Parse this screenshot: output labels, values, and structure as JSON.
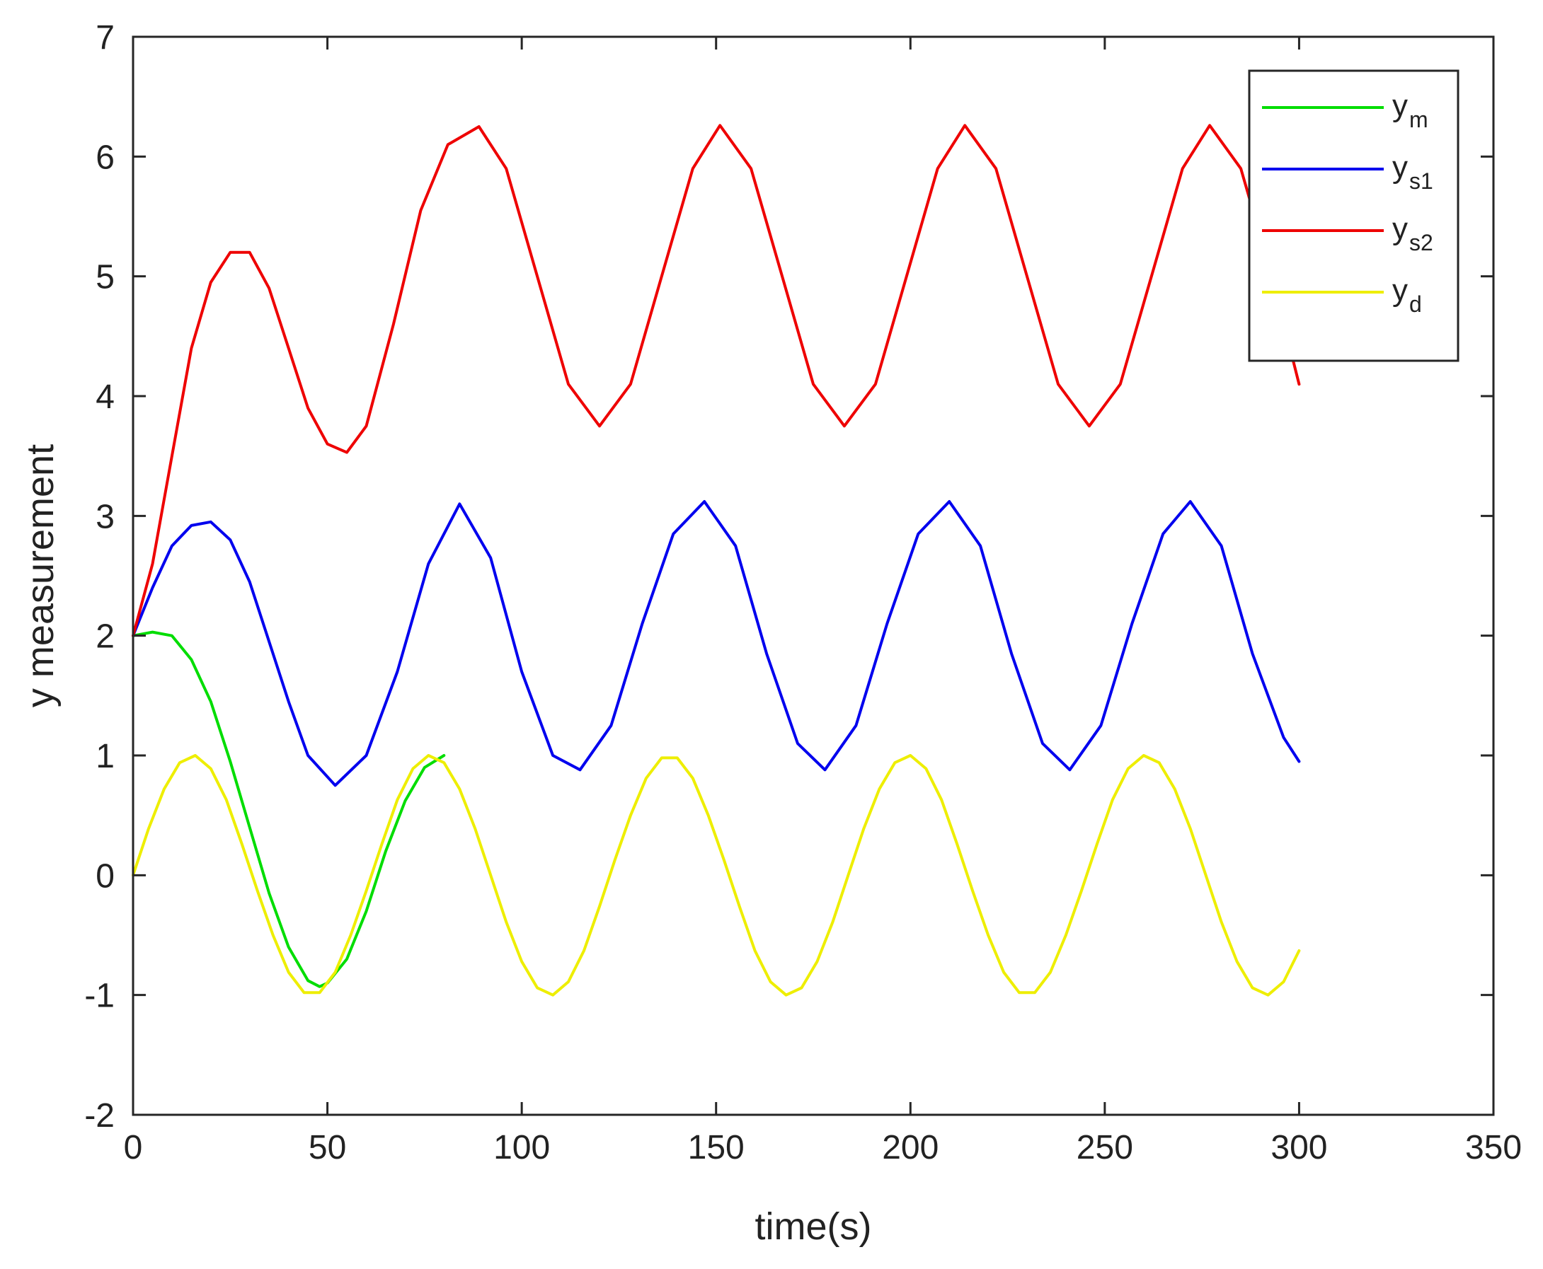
{
  "chart_data": {
    "type": "line",
    "xlabel": "time(s)",
    "ylabel": "y measurement",
    "xlim": [
      0,
      350
    ],
    "ylim": [
      -2,
      7
    ],
    "xticks": [
      0,
      50,
      100,
      150,
      200,
      250,
      300,
      350
    ],
    "yticks": [
      -2,
      -1,
      0,
      1,
      2,
      3,
      4,
      5,
      6,
      7
    ],
    "grid": false,
    "legend_position": "top-right",
    "series": [
      {
        "name": "y",
        "subscript": "m",
        "color": "#00dd00",
        "x": [
          0,
          5,
          10,
          15,
          20,
          25,
          30,
          35,
          40,
          45,
          48,
          50,
          55,
          60,
          65,
          70,
          75,
          80
        ],
        "y": [
          2.0,
          2.03,
          2.0,
          1.8,
          1.45,
          0.95,
          0.4,
          -0.15,
          -0.6,
          -0.88,
          -0.93,
          -0.9,
          -0.7,
          -0.3,
          0.2,
          0.62,
          0.9,
          1.0
        ]
      },
      {
        "name": "y",
        "subscript": "s1",
        "color": "#0000ee",
        "x": [
          0,
          5,
          10,
          15,
          20,
          25,
          30,
          35,
          40,
          45,
          52,
          60,
          68,
          76,
          84,
          92,
          100,
          108,
          115,
          123,
          131,
          139,
          147,
          155,
          163,
          171,
          178,
          186,
          194,
          202,
          210,
          218,
          226,
          234,
          241,
          249,
          257,
          265,
          272,
          280,
          288,
          296,
          300
        ],
        "y": [
          2.0,
          2.4,
          2.75,
          2.92,
          2.95,
          2.8,
          2.45,
          1.95,
          1.45,
          1.0,
          0.75,
          1.0,
          1.7,
          2.6,
          3.1,
          2.65,
          1.7,
          1.0,
          0.88,
          1.25,
          2.1,
          2.85,
          3.12,
          2.75,
          1.85,
          1.1,
          0.88,
          1.25,
          2.1,
          2.85,
          3.12,
          2.75,
          1.85,
          1.1,
          0.88,
          1.25,
          2.1,
          2.85,
          3.12,
          2.75,
          1.85,
          1.15,
          0.95
        ]
      },
      {
        "name": "y",
        "subscript": "s2",
        "color": "#ee0000",
        "x": [
          0,
          5,
          10,
          15,
          20,
          25,
          30,
          35,
          40,
          45,
          50,
          55,
          60,
          67,
          74,
          81,
          89,
          96,
          104,
          112,
          120,
          128,
          136,
          144,
          151,
          159,
          167,
          175,
          183,
          191,
          199,
          207,
          214,
          222,
          230,
          238,
          246,
          254,
          262,
          270,
          277,
          285,
          293,
          300
        ],
        "y": [
          2.0,
          2.6,
          3.5,
          4.4,
          4.95,
          5.2,
          5.2,
          4.9,
          4.4,
          3.9,
          3.6,
          3.53,
          3.75,
          4.6,
          5.55,
          6.1,
          6.25,
          5.9,
          5.0,
          4.1,
          3.75,
          4.1,
          5.0,
          5.9,
          6.26,
          5.9,
          5.0,
          4.1,
          3.75,
          4.1,
          5.0,
          5.9,
          6.26,
          5.9,
          5.0,
          4.1,
          3.75,
          4.1,
          5.0,
          5.9,
          6.26,
          5.9,
          5.0,
          4.1
        ]
      },
      {
        "name": "y",
        "subscript": "d",
        "color": "#eeee00",
        "x": [
          0,
          4,
          8,
          12,
          16,
          20,
          24,
          28,
          32,
          36,
          40,
          44,
          48,
          52,
          56,
          60,
          64,
          68,
          72,
          76,
          80,
          84,
          88,
          92,
          96,
          100,
          104,
          108,
          112,
          116,
          120,
          124,
          128,
          132,
          136,
          140,
          144,
          148,
          152,
          156,
          160,
          164,
          168,
          172,
          176,
          180,
          184,
          188,
          192,
          196,
          200,
          204,
          208,
          212,
          216,
          220,
          224,
          228,
          232,
          236,
          240,
          244,
          248,
          252,
          256,
          260,
          264,
          268,
          272,
          276,
          280,
          284,
          288,
          292,
          296,
          300
        ],
        "y": [
          0,
          0.39,
          0.72,
          0.94,
          1.0,
          0.89,
          0.63,
          0.26,
          -0.13,
          -0.5,
          -0.81,
          -0.98,
          -0.98,
          -0.81,
          -0.5,
          -0.13,
          0.26,
          0.63,
          0.89,
          1.0,
          0.94,
          0.72,
          0.39,
          0.0,
          -0.39,
          -0.72,
          -0.94,
          -1.0,
          -0.89,
          -0.63,
          -0.26,
          0.13,
          0.5,
          0.81,
          0.98,
          0.98,
          0.81,
          0.5,
          0.13,
          -0.26,
          -0.63,
          -0.89,
          -1.0,
          -0.94,
          -0.72,
          -0.39,
          0.0,
          0.39,
          0.72,
          0.94,
          1.0,
          0.89,
          0.63,
          0.26,
          -0.13,
          -0.5,
          -0.81,
          -0.98,
          -0.98,
          -0.81,
          -0.5,
          -0.13,
          0.26,
          0.63,
          0.89,
          1.0,
          0.94,
          0.72,
          0.39,
          0.0,
          -0.39,
          -0.72,
          -0.94,
          -1.0,
          -0.89,
          -0.63
        ]
      }
    ]
  }
}
